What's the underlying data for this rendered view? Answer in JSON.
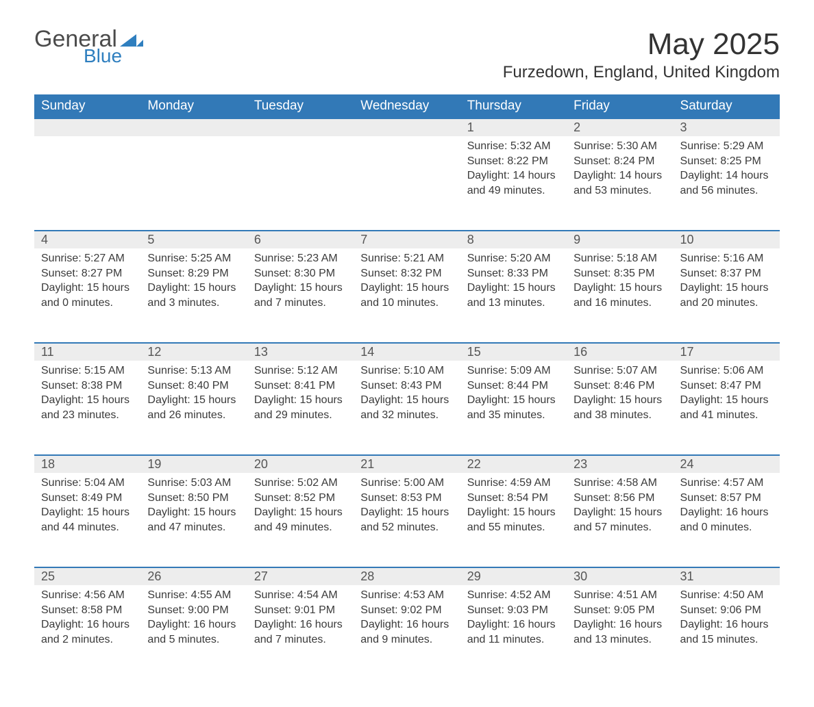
{
  "logo": {
    "text1": "General",
    "text2": "Blue"
  },
  "title": "May 2025",
  "location": "Furzedown, England, United Kingdom",
  "weekday_headers": [
    "Sunday",
    "Monday",
    "Tuesday",
    "Wednesday",
    "Thursday",
    "Friday",
    "Saturday"
  ],
  "colors": {
    "header_bg": "#3279b7",
    "header_text": "#ffffff",
    "daynum_bg": "#ededed",
    "row_border": "#3279b7",
    "body_text": "#3a3a3a",
    "logo_gray": "#4b4b4b",
    "logo_blue": "#2f7fbf"
  },
  "typography": {
    "month_title_fontsize": 44,
    "location_fontsize": 24,
    "weekday_fontsize": 19,
    "daynum_fontsize": 18,
    "content_fontsize": 16
  },
  "calendar": {
    "type": "table",
    "month_start_weekday": 4,
    "days": [
      {
        "n": 1,
        "sunrise": "5:32 AM",
        "sunset": "8:22 PM",
        "daylight": "14 hours and 49 minutes."
      },
      {
        "n": 2,
        "sunrise": "5:30 AM",
        "sunset": "8:24 PM",
        "daylight": "14 hours and 53 minutes."
      },
      {
        "n": 3,
        "sunrise": "5:29 AM",
        "sunset": "8:25 PM",
        "daylight": "14 hours and 56 minutes."
      },
      {
        "n": 4,
        "sunrise": "5:27 AM",
        "sunset": "8:27 PM",
        "daylight": "15 hours and 0 minutes."
      },
      {
        "n": 5,
        "sunrise": "5:25 AM",
        "sunset": "8:29 PM",
        "daylight": "15 hours and 3 minutes."
      },
      {
        "n": 6,
        "sunrise": "5:23 AM",
        "sunset": "8:30 PM",
        "daylight": "15 hours and 7 minutes."
      },
      {
        "n": 7,
        "sunrise": "5:21 AM",
        "sunset": "8:32 PM",
        "daylight": "15 hours and 10 minutes."
      },
      {
        "n": 8,
        "sunrise": "5:20 AM",
        "sunset": "8:33 PM",
        "daylight": "15 hours and 13 minutes."
      },
      {
        "n": 9,
        "sunrise": "5:18 AM",
        "sunset": "8:35 PM",
        "daylight": "15 hours and 16 minutes."
      },
      {
        "n": 10,
        "sunrise": "5:16 AM",
        "sunset": "8:37 PM",
        "daylight": "15 hours and 20 minutes."
      },
      {
        "n": 11,
        "sunrise": "5:15 AM",
        "sunset": "8:38 PM",
        "daylight": "15 hours and 23 minutes."
      },
      {
        "n": 12,
        "sunrise": "5:13 AM",
        "sunset": "8:40 PM",
        "daylight": "15 hours and 26 minutes."
      },
      {
        "n": 13,
        "sunrise": "5:12 AM",
        "sunset": "8:41 PM",
        "daylight": "15 hours and 29 minutes."
      },
      {
        "n": 14,
        "sunrise": "5:10 AM",
        "sunset": "8:43 PM",
        "daylight": "15 hours and 32 minutes."
      },
      {
        "n": 15,
        "sunrise": "5:09 AM",
        "sunset": "8:44 PM",
        "daylight": "15 hours and 35 minutes."
      },
      {
        "n": 16,
        "sunrise": "5:07 AM",
        "sunset": "8:46 PM",
        "daylight": "15 hours and 38 minutes."
      },
      {
        "n": 17,
        "sunrise": "5:06 AM",
        "sunset": "8:47 PM",
        "daylight": "15 hours and 41 minutes."
      },
      {
        "n": 18,
        "sunrise": "5:04 AM",
        "sunset": "8:49 PM",
        "daylight": "15 hours and 44 minutes."
      },
      {
        "n": 19,
        "sunrise": "5:03 AM",
        "sunset": "8:50 PM",
        "daylight": "15 hours and 47 minutes."
      },
      {
        "n": 20,
        "sunrise": "5:02 AM",
        "sunset": "8:52 PM",
        "daylight": "15 hours and 49 minutes."
      },
      {
        "n": 21,
        "sunrise": "5:00 AM",
        "sunset": "8:53 PM",
        "daylight": "15 hours and 52 minutes."
      },
      {
        "n": 22,
        "sunrise": "4:59 AM",
        "sunset": "8:54 PM",
        "daylight": "15 hours and 55 minutes."
      },
      {
        "n": 23,
        "sunrise": "4:58 AM",
        "sunset": "8:56 PM",
        "daylight": "15 hours and 57 minutes."
      },
      {
        "n": 24,
        "sunrise": "4:57 AM",
        "sunset": "8:57 PM",
        "daylight": "16 hours and 0 minutes."
      },
      {
        "n": 25,
        "sunrise": "4:56 AM",
        "sunset": "8:58 PM",
        "daylight": "16 hours and 2 minutes."
      },
      {
        "n": 26,
        "sunrise": "4:55 AM",
        "sunset": "9:00 PM",
        "daylight": "16 hours and 5 minutes."
      },
      {
        "n": 27,
        "sunrise": "4:54 AM",
        "sunset": "9:01 PM",
        "daylight": "16 hours and 7 minutes."
      },
      {
        "n": 28,
        "sunrise": "4:53 AM",
        "sunset": "9:02 PM",
        "daylight": "16 hours and 9 minutes."
      },
      {
        "n": 29,
        "sunrise": "4:52 AM",
        "sunset": "9:03 PM",
        "daylight": "16 hours and 11 minutes."
      },
      {
        "n": 30,
        "sunrise": "4:51 AM",
        "sunset": "9:05 PM",
        "daylight": "16 hours and 13 minutes."
      },
      {
        "n": 31,
        "sunrise": "4:50 AM",
        "sunset": "9:06 PM",
        "daylight": "16 hours and 15 minutes."
      }
    ],
    "labels": {
      "sunrise": "Sunrise:",
      "sunset": "Sunset:",
      "daylight": "Daylight:"
    }
  }
}
